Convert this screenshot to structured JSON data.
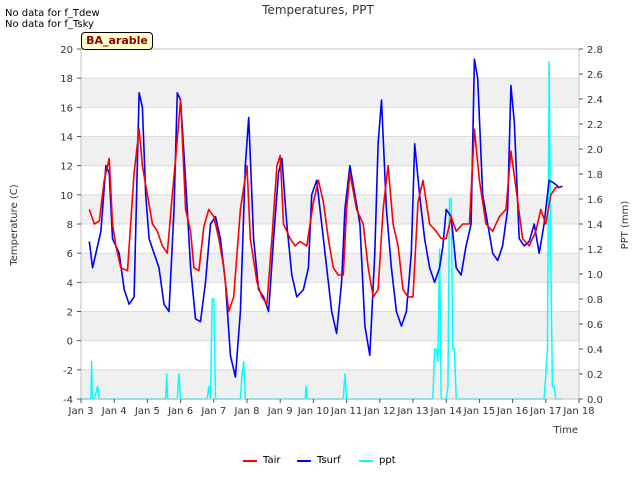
{
  "notes": [
    "No data for f_Tdew",
    "No data for f_Tsky"
  ],
  "badge": "BA_arable",
  "chart_data": {
    "type": "line",
    "title": "Temperatures, PPT",
    "xlabel": "Time",
    "ylabel": "Temperature (C)",
    "y2label": "PPT (mm)",
    "xlim": [
      3,
      18
    ],
    "ylim": [
      -4,
      20
    ],
    "y2lim": [
      0,
      2.8
    ],
    "x_ticks": [
      3,
      4,
      5,
      6,
      7,
      8,
      9,
      10,
      11,
      12,
      13,
      14,
      15,
      16,
      17,
      18
    ],
    "x_tick_labels": [
      "Jan 3",
      "Jan 4",
      "Jan 5",
      "Jan 6",
      "Jan 7",
      "Jan 8",
      "Jan 9",
      "Jan 10",
      "Jan 11",
      "Jan 12",
      "Jan 13",
      "Jan 14",
      "Jan 15",
      "Jan 16",
      "Jan 17",
      "Jan 18"
    ],
    "y_ticks": [
      -4,
      -2,
      0,
      2,
      4,
      6,
      8,
      10,
      12,
      14,
      16,
      18,
      20
    ],
    "y2_ticks": [
      0.0,
      0.2,
      0.4,
      0.6,
      0.8,
      1.0,
      1.2,
      1.4,
      1.6,
      1.8,
      2.0,
      2.2,
      2.4,
      2.6,
      2.8
    ],
    "y2_tick_labels": [
      "0.0",
      "0.2",
      "0.4",
      "0.6",
      "0.8",
      "1.0",
      "1.2",
      "1.4",
      "1.6",
      "1.8",
      "2.0",
      "2.2",
      "2.4",
      "2.6",
      "2.8"
    ],
    "grid": "horizontal bands",
    "legend_position": "bottom-center",
    "series": [
      {
        "name": "Tair",
        "color": "#ff0000",
        "axis": "left",
        "x": [
          3.25,
          3.4,
          3.55,
          3.7,
          3.85,
          3.95,
          4.05,
          4.2,
          4.4,
          4.6,
          4.75,
          4.85,
          5.0,
          5.15,
          5.3,
          5.45,
          5.6,
          5.75,
          5.85,
          6.0,
          6.15,
          6.3,
          6.4,
          6.55,
          6.7,
          6.85,
          7.0,
          7.15,
          7.3,
          7.45,
          7.6,
          7.8,
          8.0,
          8.1,
          8.3,
          8.45,
          8.6,
          8.75,
          8.9,
          9.0,
          9.1,
          9.3,
          9.45,
          9.6,
          9.8,
          10.0,
          10.15,
          10.3,
          10.45,
          10.6,
          10.75,
          10.9,
          11.0,
          11.1,
          11.3,
          11.5,
          11.65,
          11.8,
          11.95,
          12.1,
          12.25,
          12.4,
          12.55,
          12.7,
          12.85,
          13.0,
          13.15,
          13.3,
          13.5,
          13.7,
          13.85,
          14.0,
          14.15,
          14.3,
          14.5,
          14.7,
          14.85,
          15.0,
          15.2,
          15.4,
          15.6,
          15.8,
          15.95,
          16.1,
          16.3,
          16.5,
          16.7,
          16.85,
          17.0,
          17.15,
          17.3,
          17.45
        ],
        "y": [
          9.0,
          8.0,
          8.2,
          11.0,
          12.5,
          8.0,
          6.5,
          5.0,
          4.8,
          11.5,
          14.5,
          12.0,
          10.0,
          8.0,
          7.5,
          6.5,
          6.0,
          10.0,
          12.5,
          16.5,
          9.0,
          7.5,
          5.0,
          4.8,
          7.8,
          9.0,
          8.5,
          7.0,
          5.0,
          2.0,
          3.0,
          9.0,
          12.0,
          7.0,
          4.0,
          3.0,
          2.5,
          7.0,
          12.0,
          12.7,
          8.0,
          7.0,
          6.5,
          6.8,
          6.5,
          9.5,
          11.0,
          9.5,
          7.0,
          5.0,
          4.5,
          4.5,
          9.0,
          11.5,
          9.0,
          8.0,
          5.0,
          3.0,
          3.5,
          9.0,
          12.0,
          8.0,
          6.5,
          3.5,
          3.0,
          3.0,
          9.5,
          11.0,
          8.0,
          7.5,
          7.0,
          7.0,
          8.5,
          7.5,
          8.0,
          8.0,
          14.5,
          11.0,
          8.0,
          7.5,
          8.5,
          9.0,
          13.0,
          10.5,
          7.0,
          6.5,
          7.5,
          9.0,
          8.0,
          10.0,
          10.5,
          10.5
        ]
      },
      {
        "name": "Tsurf",
        "color": "#0000ff",
        "axis": "left",
        "x": [
          3.25,
          3.35,
          3.45,
          3.6,
          3.75,
          3.85,
          3.95,
          4.05,
          4.15,
          4.3,
          4.45,
          4.6,
          4.75,
          4.85,
          4.95,
          5.05,
          5.2,
          5.35,
          5.5,
          5.65,
          5.8,
          5.9,
          6.0,
          6.15,
          6.3,
          6.45,
          6.6,
          6.75,
          6.9,
          7.05,
          7.2,
          7.35,
          7.5,
          7.65,
          7.8,
          7.95,
          8.05,
          8.2,
          8.35,
          8.5,
          8.65,
          8.8,
          8.95,
          9.05,
          9.2,
          9.35,
          9.5,
          9.7,
          9.85,
          9.95,
          10.1,
          10.25,
          10.4,
          10.55,
          10.7,
          10.85,
          10.95,
          11.1,
          11.25,
          11.4,
          11.55,
          11.7,
          11.85,
          11.95,
          12.05,
          12.2,
          12.35,
          12.5,
          12.65,
          12.8,
          12.95,
          13.05,
          13.2,
          13.35,
          13.5,
          13.65,
          13.8,
          13.9,
          14.0,
          14.15,
          14.3,
          14.45,
          14.6,
          14.75,
          14.85,
          14.95,
          15.1,
          15.25,
          15.4,
          15.55,
          15.7,
          15.85,
          15.95,
          16.05,
          16.2,
          16.35,
          16.5,
          16.65,
          16.8,
          16.95,
          17.1,
          17.25,
          17.4,
          17.5
        ],
        "y": [
          6.8,
          5.0,
          6.0,
          7.5,
          12.0,
          11.5,
          7.0,
          6.5,
          6.0,
          3.5,
          2.5,
          3.0,
          17.0,
          16.0,
          10.0,
          7.0,
          6.0,
          5.0,
          2.5,
          2.0,
          9.0,
          17.0,
          16.5,
          11.0,
          5.0,
          1.5,
          1.3,
          4.0,
          8.0,
          8.5,
          7.0,
          4.0,
          -1.0,
          -2.5,
          2.0,
          12.0,
          15.3,
          7.0,
          3.5,
          3.0,
          2.0,
          7.0,
          11.5,
          12.5,
          8.0,
          4.5,
          3.0,
          3.5,
          5.0,
          10.0,
          11.0,
          8.0,
          5.0,
          2.0,
          0.5,
          4.0,
          9.0,
          12.0,
          10.0,
          8.0,
          1.0,
          -1.0,
          6.0,
          13.5,
          16.5,
          9.0,
          5.0,
          2.0,
          1.0,
          2.0,
          6.0,
          13.5,
          10.0,
          7.0,
          5.0,
          4.0,
          5.0,
          6.5,
          9.0,
          8.5,
          5.0,
          4.5,
          6.5,
          8.0,
          19.3,
          18.0,
          10.0,
          8.0,
          6.0,
          5.5,
          6.5,
          9.0,
          17.5,
          15.0,
          7.0,
          6.5,
          6.8,
          8.0,
          6.0,
          8.0,
          11.0,
          10.8,
          10.5,
          10.6
        ]
      },
      {
        "name": "ppt",
        "color": "#00ffff",
        "axis": "right",
        "x": [
          3.0,
          3.3,
          3.32,
          3.34,
          3.4,
          3.5,
          3.55,
          3.6,
          5.55,
          5.58,
          5.61,
          5.9,
          5.95,
          6.0,
          6.8,
          6.85,
          6.9,
          6.95,
          7.0,
          7.05,
          7.8,
          7.85,
          7.9,
          7.95,
          9.75,
          9.78,
          9.81,
          10.9,
          10.95,
          11.0,
          13.6,
          13.65,
          13.7,
          13.75,
          13.8,
          13.85,
          14.0,
          14.05,
          14.1,
          14.15,
          14.2,
          14.25,
          14.3,
          16.95,
          17.0,
          17.05,
          17.1,
          17.15,
          17.2,
          17.25,
          17.3,
          17.5
        ],
        "y": [
          0.0,
          0.0,
          0.3,
          0.0,
          0.0,
          0.1,
          0.0,
          0.0,
          0.0,
          0.2,
          0.0,
          0.0,
          0.2,
          0.0,
          0.0,
          0.1,
          0.0,
          0.8,
          0.8,
          0.0,
          0.0,
          0.2,
          0.3,
          0.0,
          0.0,
          0.1,
          0.0,
          0.0,
          0.2,
          0.0,
          0.0,
          0.4,
          0.4,
          0.3,
          1.2,
          0.0,
          0.0,
          0.1,
          1.6,
          1.6,
          0.4,
          0.4,
          0.0,
          0.0,
          0.2,
          0.4,
          2.7,
          1.1,
          0.1,
          0.1,
          0.0,
          0.0
        ]
      }
    ]
  }
}
